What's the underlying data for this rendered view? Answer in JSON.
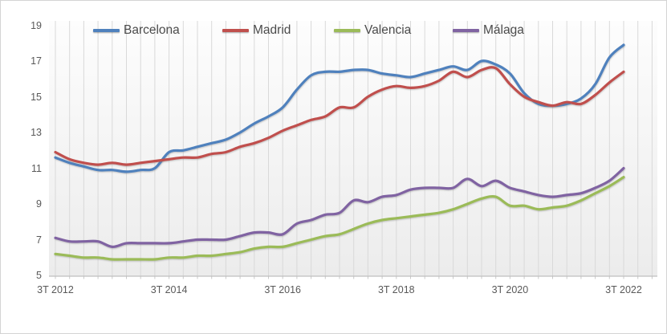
{
  "chart_data": {
    "type": "line",
    "title": "",
    "unit_hint": "",
    "legend_position": "top",
    "grid": "vertical-per-category",
    "ylim": [
      5,
      19
    ],
    "y_ticks": [
      5,
      7,
      9,
      11,
      13,
      15,
      17,
      19
    ],
    "x_tick_labels": [
      "3T 2012",
      "3T 2014",
      "3T 2016",
      "3T 2018",
      "3T 2020",
      "3T 2022"
    ],
    "x_tick_indices": [
      0,
      8,
      16,
      24,
      32,
      40
    ],
    "extra_gridline_slots": 2,
    "categories": [
      "3T 2012",
      "4T 2012",
      "1T 2013",
      "2T 2013",
      "3T 2013",
      "4T 2013",
      "1T 2014",
      "2T 2014",
      "3T 2014",
      "4T 2014",
      "1T 2015",
      "2T 2015",
      "3T 2015",
      "4T 2015",
      "1T 2016",
      "2T 2016",
      "3T 2016",
      "4T 2016",
      "1T 2017",
      "2T 2017",
      "3T 2017",
      "4T 2017",
      "1T 2018",
      "2T 2018",
      "3T 2018",
      "4T 2018",
      "1T 2019",
      "2T 2019",
      "3T 2019",
      "4T 2019",
      "1T 2020",
      "2T 2020",
      "3T 2020",
      "4T 2020",
      "1T 2021",
      "2T 2021",
      "3T 2021",
      "4T 2021",
      "1T 2022",
      "2T 2022",
      "3T 2022"
    ],
    "series": [
      {
        "name": "Barcelona",
        "color": "#4F81BD",
        "values": [
          11.6,
          11.3,
          11.1,
          10.9,
          10.9,
          10.8,
          10.9,
          11.0,
          11.9,
          12.0,
          12.2,
          12.4,
          12.6,
          13.0,
          13.5,
          13.9,
          14.4,
          15.4,
          16.2,
          16.4,
          16.4,
          16.5,
          16.5,
          16.3,
          16.2,
          16.1,
          16.3,
          16.5,
          16.7,
          16.5,
          17.0,
          16.8,
          16.3,
          15.2,
          14.6,
          14.5,
          14.6,
          14.9,
          15.7,
          17.2,
          17.9
        ]
      },
      {
        "name": "Madrid",
        "color": "#C0504D",
        "values": [
          11.9,
          11.5,
          11.3,
          11.2,
          11.3,
          11.2,
          11.3,
          11.4,
          11.5,
          11.6,
          11.6,
          11.8,
          11.9,
          12.2,
          12.4,
          12.7,
          13.1,
          13.4,
          13.7,
          13.9,
          14.4,
          14.4,
          15.0,
          15.4,
          15.6,
          15.5,
          15.6,
          15.9,
          16.4,
          16.1,
          16.5,
          16.6,
          15.7,
          15.0,
          14.7,
          14.5,
          14.7,
          14.6,
          15.1,
          15.8,
          16.4
        ]
      },
      {
        "name": "Valencia",
        "color": "#9BBB59",
        "values": [
          6.2,
          6.1,
          6.0,
          6.0,
          5.9,
          5.9,
          5.9,
          5.9,
          6.0,
          6.0,
          6.1,
          6.1,
          6.2,
          6.3,
          6.5,
          6.6,
          6.6,
          6.8,
          7.0,
          7.2,
          7.3,
          7.6,
          7.9,
          8.1,
          8.2,
          8.3,
          8.4,
          8.5,
          8.7,
          9.0,
          9.3,
          9.4,
          8.9,
          8.9,
          8.7,
          8.8,
          8.9,
          9.2,
          9.6,
          10.0,
          10.5
        ]
      },
      {
        "name": "Málaga",
        "color": "#8064A2",
        "values": [
          7.1,
          6.9,
          6.9,
          6.9,
          6.6,
          6.8,
          6.8,
          6.8,
          6.8,
          6.9,
          7.0,
          7.0,
          7.0,
          7.2,
          7.4,
          7.4,
          7.3,
          7.9,
          8.1,
          8.4,
          8.5,
          9.2,
          9.1,
          9.4,
          9.5,
          9.8,
          9.9,
          9.9,
          9.9,
          10.4,
          10.0,
          10.3,
          9.9,
          9.7,
          9.5,
          9.4,
          9.5,
          9.6,
          9.9,
          10.3,
          11.0
        ]
      }
    ],
    "colors": {
      "gridline": "#d9d9d9",
      "axis_line": "#c0c0c0",
      "tick_mark": "#c9c9c9",
      "tick_label": "#595959",
      "legend_text": "#4a4a4a",
      "plot_bg_top": "#fdfdfd",
      "plot_bg_bottom": "#ececec",
      "frame_border": "#d4d4d4"
    }
  }
}
